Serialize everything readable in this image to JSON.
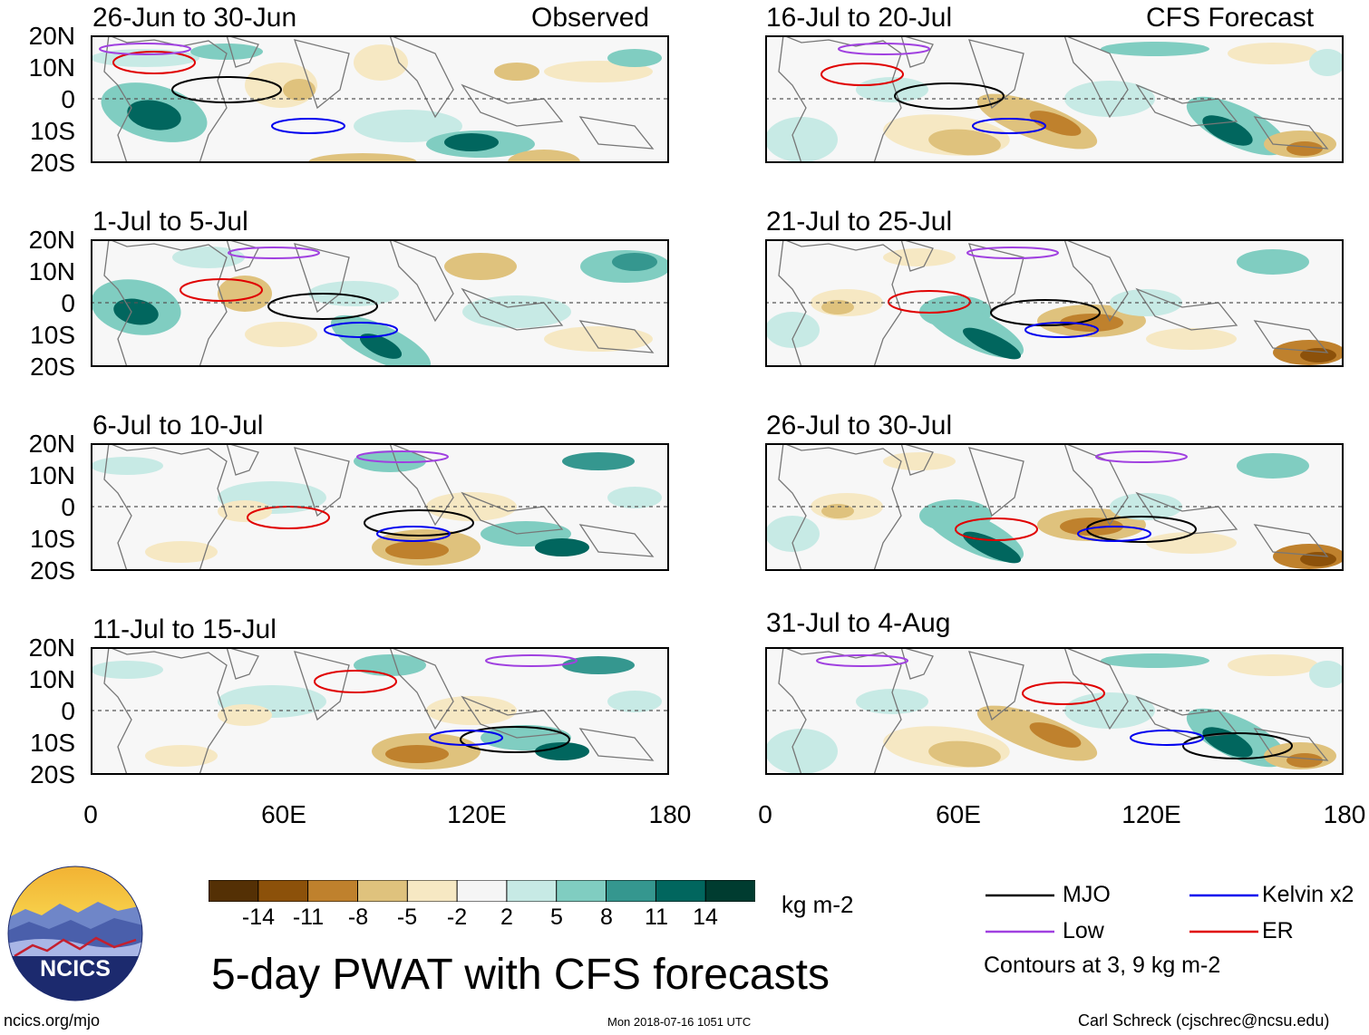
{
  "panels": [
    {
      "title": "26-Jun to 30-Jun",
      "label": "Observed"
    },
    {
      "title": "16-Jul to 20-Jul",
      "label": "CFS Forecast"
    },
    {
      "title": "1-Jul to 5-Jul",
      "label": ""
    },
    {
      "title": "21-Jul to 25-Jul",
      "label": ""
    },
    {
      "title": "6-Jul to 10-Jul",
      "label": ""
    },
    {
      "title": "26-Jul to 30-Jul",
      "label": ""
    },
    {
      "title": "11-Jul to 15-Jul",
      "label": ""
    },
    {
      "title": "31-Jul to 4-Aug",
      "label": ""
    }
  ],
  "y_labels": [
    "20N",
    "10N",
    "0",
    "10S",
    "20S"
  ],
  "x_labels": [
    "0",
    "60E",
    "120E",
    "180"
  ],
  "colorbar": {
    "colors": [
      "#543005",
      "#8c510a",
      "#bf812d",
      "#dfc27d",
      "#f6e8c3",
      "#f5f5f5",
      "#c7eae5",
      "#80cdc1",
      "#35978f",
      "#01665e",
      "#003c30"
    ],
    "ticks": [
      "-14",
      "-11",
      "-8",
      "-5",
      "-2",
      "2",
      "5",
      "8",
      "11",
      "14"
    ],
    "units": "kg m-2"
  },
  "title": "5-day PWAT with CFS forecasts",
  "legend": {
    "items": [
      {
        "label": "MJO",
        "color": "#000000"
      },
      {
        "label": "Kelvin x2",
        "color": "#0000ee"
      },
      {
        "label": "Low",
        "color": "#a040e0"
      },
      {
        "label": "ER",
        "color": "#e00000"
      }
    ],
    "note": "Contours at 3, 9 kg m-2"
  },
  "logo_text": "NCICS",
  "footer": {
    "left": "ncics.org/mjo",
    "center": "Mon 2018-07-16 1051 UTC",
    "right": "Carl Schreck (cjschrec@ncsu.edu)"
  }
}
